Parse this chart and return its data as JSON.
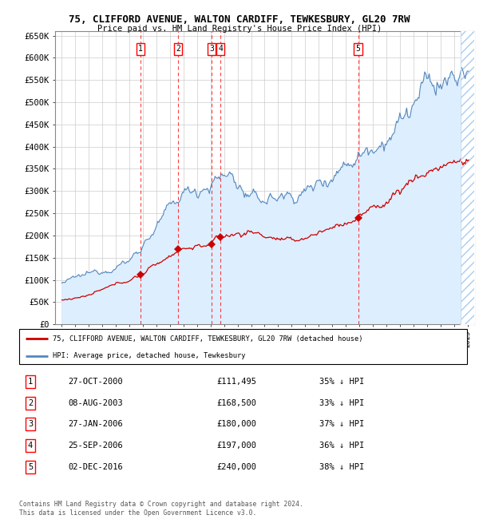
{
  "title": "75, CLIFFORD AVENUE, WALTON CARDIFF, TEWKESBURY, GL20 7RW",
  "subtitle": "Price paid vs. HM Land Registry's House Price Index (HPI)",
  "legend_line1": "75, CLIFFORD AVENUE, WALTON CARDIFF, TEWKESBURY, GL20 7RW (detached house)",
  "legend_line2": "HPI: Average price, detached house, Tewkesbury",
  "sale_color": "#cc0000",
  "hpi_color": "#5588bb",
  "hpi_fill_color": "#ddeeff",
  "footer": "Contains HM Land Registry data © Crown copyright and database right 2024.\nThis data is licensed under the Open Government Licence v3.0.",
  "sales": [
    {
      "num": 1,
      "price": 111495,
      "x": 2000.82
    },
    {
      "num": 2,
      "price": 168500,
      "x": 2003.6
    },
    {
      "num": 3,
      "price": 180000,
      "x": 2006.07
    },
    {
      "num": 4,
      "price": 197000,
      "x": 2006.73
    },
    {
      "num": 5,
      "price": 240000,
      "x": 2016.92
    }
  ],
  "table_rows": [
    [
      "1",
      "27-OCT-2000",
      "£111,495",
      "35% ↓ HPI"
    ],
    [
      "2",
      "08-AUG-2003",
      "£168,500",
      "33% ↓ HPI"
    ],
    [
      "3",
      "27-JAN-2006",
      "£180,000",
      "37% ↓ HPI"
    ],
    [
      "4",
      "25-SEP-2006",
      "£197,000",
      "36% ↓ HPI"
    ],
    [
      "5",
      "02-DEC-2016",
      "£240,000",
      "38% ↓ HPI"
    ]
  ],
  "xlim": [
    1994.5,
    2025.5
  ],
  "ylim": [
    0,
    660000
  ],
  "ytick_vals": [
    0,
    50000,
    100000,
    150000,
    200000,
    250000,
    300000,
    350000,
    400000,
    450000,
    500000,
    550000,
    600000,
    650000
  ],
  "ytick_labels": [
    "£0",
    "£50K",
    "£100K",
    "£150K",
    "£200K",
    "£250K",
    "£300K",
    "£350K",
    "£400K",
    "£450K",
    "£500K",
    "£550K",
    "£600K",
    "£650K"
  ]
}
